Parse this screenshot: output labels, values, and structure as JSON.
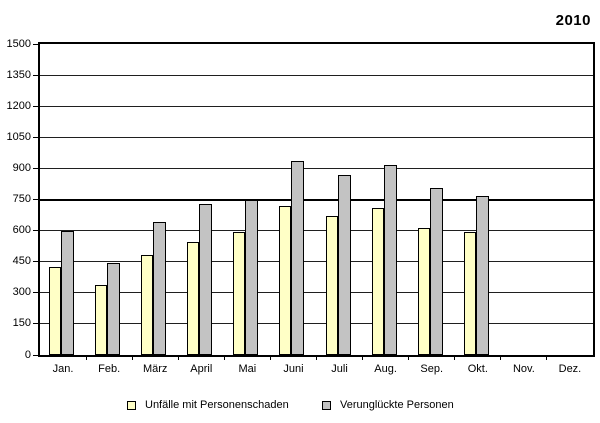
{
  "title": "2010",
  "chart_data": {
    "type": "bar",
    "title": "2010",
    "categories": [
      "Jan.",
      "Feb.",
      "März",
      "April",
      "Mai",
      "Juni",
      "Juli",
      "Aug.",
      "Sep.",
      "Okt.",
      "Nov.",
      "Dez."
    ],
    "series": [
      {
        "name": "Unfälle mit Personenschaden",
        "color": "#FFFFC6",
        "values": [
          425,
          340,
          480,
          545,
          595,
          720,
          670,
          710,
          615,
          595,
          null,
          null
        ]
      },
      {
        "name": "Verunglückte Personen",
        "color": "#C3C3C3",
        "values": [
          600,
          445,
          640,
          730,
          750,
          935,
          870,
          915,
          805,
          765,
          null,
          null
        ]
      }
    ],
    "xlabel": "",
    "ylabel": "",
    "ylim": [
      0,
      1500
    ],
    "yticks": [
      0,
      150,
      300,
      450,
      600,
      750,
      900,
      1050,
      1200,
      1350,
      1500
    ],
    "major_lines": [
      0,
      750,
      1500
    ],
    "grid": "horizontal",
    "legend_position": "bottom"
  },
  "colors": {
    "background": "#FFFFFF",
    "axis": "#000000",
    "bar_border": "#000000",
    "text": "#000000"
  }
}
